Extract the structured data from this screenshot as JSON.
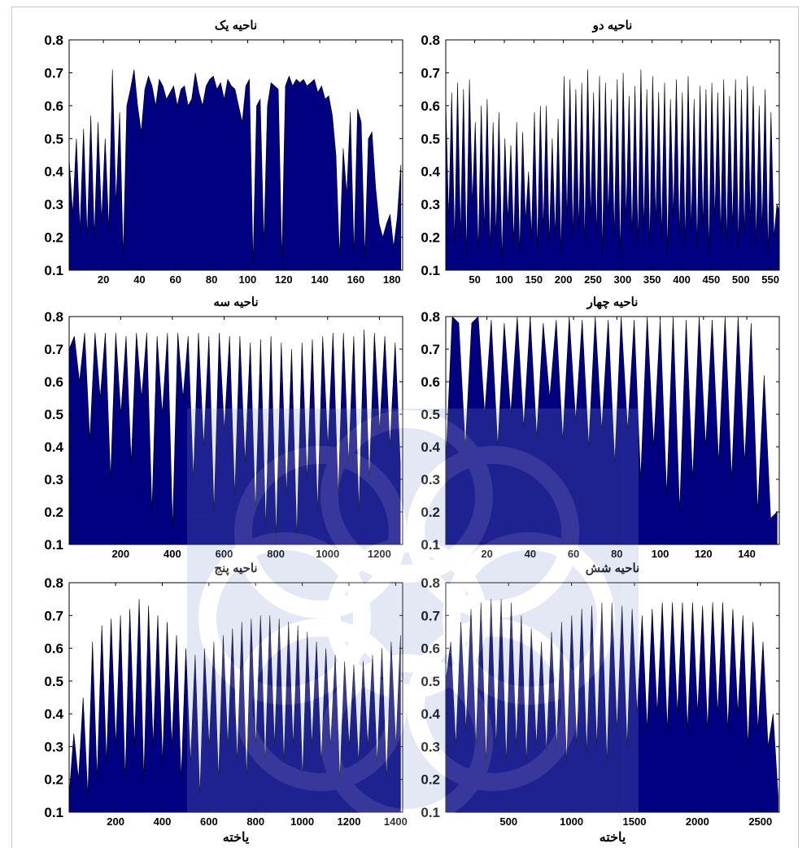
{
  "figure": {
    "fill_color": "#000080",
    "line_color": "#000000",
    "background": "#ffffff",
    "watermark": "logo overlay (pale blue)"
  },
  "chart_data": [
    {
      "type": "area",
      "title": "ناحیه یک",
      "xlabel": "",
      "ylabel": "",
      "xlim": [
        1,
        186
      ],
      "ylim": [
        0.1,
        0.8
      ],
      "xticks": [
        20,
        40,
        60,
        80,
        100,
        120,
        140,
        160,
        180
      ],
      "yticks": [
        0.1,
        0.2,
        0.3,
        0.4,
        0.5,
        0.6,
        0.7,
        0.8
      ],
      "x": [
        1,
        3,
        5,
        7,
        9,
        11,
        13,
        15,
        17,
        19,
        21,
        23,
        25,
        27,
        29,
        31,
        33,
        35,
        37,
        39,
        41,
        43,
        45,
        47,
        49,
        51,
        53,
        55,
        57,
        59,
        61,
        63,
        65,
        67,
        69,
        71,
        73,
        75,
        77,
        79,
        81,
        83,
        85,
        87,
        89,
        91,
        93,
        95,
        97,
        99,
        101,
        103,
        105,
        107,
        109,
        111,
        113,
        115,
        117,
        119,
        121,
        123,
        125,
        127,
        129,
        131,
        133,
        135,
        137,
        139,
        141,
        143,
        145,
        147,
        149,
        151,
        153,
        155,
        157,
        159,
        161,
        163,
        165,
        167,
        169,
        171,
        173,
        175,
        177,
        179,
        181,
        183,
        185
      ],
      "values": [
        0.44,
        0.27,
        0.5,
        0.22,
        0.53,
        0.2,
        0.57,
        0.2,
        0.55,
        0.25,
        0.5,
        0.22,
        0.71,
        0.3,
        0.58,
        0.14,
        0.6,
        0.65,
        0.71,
        0.6,
        0.52,
        0.65,
        0.69,
        0.66,
        0.6,
        0.68,
        0.66,
        0.62,
        0.64,
        0.66,
        0.6,
        0.65,
        0.66,
        0.6,
        0.62,
        0.7,
        0.64,
        0.6,
        0.66,
        0.68,
        0.69,
        0.65,
        0.67,
        0.62,
        0.68,
        0.66,
        0.65,
        0.6,
        0.55,
        0.66,
        0.68,
        0.12,
        0.6,
        0.62,
        0.18,
        0.6,
        0.67,
        0.66,
        0.65,
        0.13,
        0.66,
        0.69,
        0.66,
        0.68,
        0.67,
        0.68,
        0.66,
        0.67,
        0.68,
        0.64,
        0.66,
        0.62,
        0.63,
        0.57,
        0.45,
        0.14,
        0.47,
        0.33,
        0.58,
        0.15,
        0.59,
        0.55,
        0.14,
        0.5,
        0.52,
        0.35,
        0.24,
        0.2,
        0.24,
        0.27,
        0.17,
        0.26,
        0.42
      ]
    },
    {
      "type": "area",
      "title": "ناحیه دو",
      "xlabel": "",
      "ylabel": "",
      "xlim": [
        1,
        565
      ],
      "ylim": [
        0.1,
        0.8
      ],
      "xticks": [
        50,
        100,
        150,
        200,
        250,
        300,
        350,
        400,
        450,
        500,
        550
      ],
      "yticks": [
        0.1,
        0.2,
        0.3,
        0.4,
        0.5,
        0.6,
        0.7,
        0.8
      ],
      "x": [
        1,
        6,
        11,
        16,
        21,
        26,
        31,
        36,
        41,
        46,
        51,
        56,
        61,
        66,
        71,
        76,
        81,
        86,
        91,
        96,
        101,
        106,
        111,
        116,
        121,
        126,
        131,
        136,
        141,
        146,
        151,
        156,
        161,
        166,
        171,
        176,
        181,
        186,
        191,
        196,
        201,
        206,
        211,
        216,
        221,
        226,
        231,
        236,
        241,
        246,
        251,
        256,
        261,
        266,
        271,
        276,
        281,
        286,
        291,
        296,
        301,
        306,
        311,
        316,
        321,
        326,
        331,
        336,
        341,
        346,
        351,
        356,
        361,
        366,
        371,
        376,
        381,
        386,
        391,
        396,
        401,
        406,
        411,
        416,
        421,
        426,
        431,
        436,
        441,
        446,
        451,
        456,
        461,
        466,
        471,
        476,
        481,
        486,
        491,
        496,
        501,
        506,
        511,
        516,
        521,
        526,
        531,
        536,
        541,
        546,
        551,
        556,
        561,
        565
      ],
      "values": [
        0.62,
        0.25,
        0.64,
        0.18,
        0.67,
        0.2,
        0.65,
        0.14,
        0.68,
        0.3,
        0.55,
        0.15,
        0.6,
        0.22,
        0.62,
        0.16,
        0.55,
        0.2,
        0.58,
        0.13,
        0.5,
        0.25,
        0.48,
        0.18,
        0.55,
        0.15,
        0.52,
        0.25,
        0.4,
        0.2,
        0.58,
        0.16,
        0.6,
        0.22,
        0.6,
        0.18,
        0.5,
        0.2,
        0.56,
        0.15,
        0.69,
        0.25,
        0.68,
        0.2,
        0.65,
        0.22,
        0.67,
        0.18,
        0.71,
        0.25,
        0.64,
        0.2,
        0.69,
        0.15,
        0.67,
        0.26,
        0.62,
        0.2,
        0.68,
        0.14,
        0.7,
        0.25,
        0.63,
        0.2,
        0.66,
        0.18,
        0.71,
        0.22,
        0.65,
        0.17,
        0.69,
        0.24,
        0.64,
        0.2,
        0.67,
        0.15,
        0.62,
        0.26,
        0.68,
        0.2,
        0.64,
        0.18,
        0.69,
        0.22,
        0.62,
        0.17,
        0.66,
        0.23,
        0.65,
        0.15,
        0.67,
        0.25,
        0.64,
        0.2,
        0.68,
        0.18,
        0.63,
        0.22,
        0.68,
        0.17,
        0.65,
        0.2,
        0.69,
        0.24,
        0.66,
        0.18,
        0.6,
        0.22,
        0.65,
        0.15,
        0.58,
        0.2,
        0.3,
        0.28
      ]
    },
    {
      "type": "area",
      "title": "ناحیه سه",
      "xlabel": "",
      "ylabel": "",
      "xlim": [
        1,
        1290
      ],
      "ylim": [
        0.1,
        0.8
      ],
      "xticks": [
        200,
        400,
        600,
        800,
        1000,
        1200
      ],
      "yticks": [
        0.1,
        0.2,
        0.3,
        0.4,
        0.5,
        0.6,
        0.7,
        0.8
      ],
      "x": [
        1,
        21,
        41,
        61,
        81,
        101,
        121,
        141,
        161,
        181,
        201,
        221,
        241,
        261,
        281,
        301,
        321,
        341,
        361,
        381,
        401,
        421,
        441,
        461,
        481,
        501,
        521,
        541,
        561,
        581,
        601,
        621,
        641,
        661,
        681,
        701,
        721,
        741,
        761,
        781,
        801,
        821,
        841,
        861,
        881,
        901,
        921,
        941,
        961,
        981,
        1001,
        1021,
        1041,
        1061,
        1081,
        1101,
        1121,
        1141,
        1161,
        1181,
        1201,
        1221,
        1241,
        1261,
        1281
      ],
      "values": [
        0.7,
        0.74,
        0.6,
        0.75,
        0.42,
        0.75,
        0.55,
        0.75,
        0.3,
        0.75,
        0.5,
        0.74,
        0.35,
        0.75,
        0.55,
        0.75,
        0.2,
        0.74,
        0.5,
        0.75,
        0.15,
        0.75,
        0.55,
        0.74,
        0.3,
        0.75,
        0.4,
        0.74,
        0.2,
        0.75,
        0.45,
        0.74,
        0.25,
        0.74,
        0.35,
        0.72,
        0.2,
        0.73,
        0.15,
        0.74,
        0.12,
        0.72,
        0.25,
        0.7,
        0.12,
        0.72,
        0.3,
        0.73,
        0.2,
        0.74,
        0.4,
        0.75,
        0.25,
        0.75,
        0.35,
        0.74,
        0.2,
        0.76,
        0.3,
        0.75,
        0.45,
        0.74,
        0.4,
        0.72,
        0.35
      ]
    },
    {
      "type": "area",
      "title": "ناحیه چهار",
      "xlabel": "",
      "ylabel": "",
      "xlim": [
        1,
        155
      ],
      "ylim": [
        0.1,
        0.8
      ],
      "xticks": [
        20,
        40,
        60,
        80,
        100,
        120,
        140
      ],
      "yticks": [
        0.1,
        0.2,
        0.3,
        0.4,
        0.5,
        0.6,
        0.7,
        0.8
      ],
      "x": [
        1,
        4,
        7,
        10,
        13,
        16,
        19,
        22,
        25,
        28,
        31,
        34,
        37,
        40,
        43,
        46,
        49,
        52,
        55,
        58,
        61,
        64,
        67,
        70,
        73,
        76,
        79,
        82,
        85,
        88,
        91,
        94,
        97,
        100,
        103,
        106,
        109,
        112,
        115,
        118,
        121,
        124,
        127,
        130,
        133,
        136,
        139,
        142,
        145,
        148,
        151,
        154
      ],
      "values": [
        0.35,
        0.8,
        0.78,
        0.4,
        0.78,
        0.8,
        0.5,
        0.79,
        0.4,
        0.78,
        0.5,
        0.8,
        0.46,
        0.8,
        0.43,
        0.78,
        0.55,
        0.79,
        0.42,
        0.8,
        0.48,
        0.79,
        0.4,
        0.8,
        0.45,
        0.79,
        0.35,
        0.8,
        0.45,
        0.79,
        0.3,
        0.8,
        0.4,
        0.79,
        0.25,
        0.8,
        0.2,
        0.79,
        0.3,
        0.8,
        0.4,
        0.79,
        0.35,
        0.8,
        0.3,
        0.8,
        0.35,
        0.78,
        0.2,
        0.62,
        0.18,
        0.2
      ]
    },
    {
      "type": "area",
      "title": "ناحیه پنج",
      "xlabel": "یاخته",
      "ylabel": "",
      "xlim": [
        1,
        1430
      ],
      "ylim": [
        0.1,
        0.8
      ],
      "xticks": [
        200,
        400,
        600,
        800,
        1000,
        1200,
        1400
      ],
      "yticks": [
        0.1,
        0.2,
        0.3,
        0.4,
        0.5,
        0.6,
        0.7,
        0.8
      ],
      "x": [
        1,
        21,
        41,
        61,
        81,
        101,
        121,
        141,
        161,
        181,
        201,
        221,
        241,
        261,
        281,
        301,
        321,
        341,
        361,
        381,
        401,
        421,
        441,
        461,
        481,
        501,
        521,
        541,
        561,
        581,
        601,
        621,
        641,
        661,
        681,
        701,
        721,
        741,
        761,
        781,
        801,
        821,
        841,
        861,
        881,
        901,
        921,
        941,
        961,
        981,
        1001,
        1021,
        1041,
        1061,
        1081,
        1101,
        1121,
        1141,
        1161,
        1181,
        1201,
        1221,
        1241,
        1261,
        1281,
        1301,
        1321,
        1341,
        1361,
        1381,
        1401,
        1421
      ],
      "values": [
        0.15,
        0.34,
        0.2,
        0.45,
        0.15,
        0.62,
        0.2,
        0.67,
        0.25,
        0.69,
        0.3,
        0.7,
        0.2,
        0.72,
        0.3,
        0.75,
        0.2,
        0.73,
        0.3,
        0.7,
        0.25,
        0.68,
        0.3,
        0.64,
        0.2,
        0.6,
        0.25,
        0.58,
        0.15,
        0.6,
        0.3,
        0.62,
        0.2,
        0.64,
        0.3,
        0.66,
        0.25,
        0.68,
        0.2,
        0.69,
        0.3,
        0.7,
        0.25,
        0.7,
        0.3,
        0.69,
        0.25,
        0.68,
        0.3,
        0.67,
        0.2,
        0.65,
        0.3,
        0.62,
        0.25,
        0.6,
        0.3,
        0.58,
        0.2,
        0.56,
        0.3,
        0.55,
        0.25,
        0.56,
        0.3,
        0.58,
        0.25,
        0.6,
        0.2,
        0.62,
        0.3,
        0.64
      ]
    },
    {
      "type": "area",
      "title": "ناحیه شش",
      "xlabel": "یاخته",
      "ylabel": "",
      "xlim": [
        1,
        2650
      ],
      "ylim": [
        0.1,
        0.8
      ],
      "xticks": [
        500,
        1000,
        1500,
        2000,
        2500
      ],
      "yticks": [
        0.1,
        0.2,
        0.3,
        0.4,
        0.5,
        0.6,
        0.7,
        0.8
      ],
      "x": [
        1,
        41,
        81,
        121,
        161,
        201,
        241,
        281,
        321,
        361,
        401,
        441,
        481,
        521,
        561,
        601,
        641,
        681,
        721,
        761,
        801,
        841,
        881,
        921,
        961,
        1001,
        1041,
        1081,
        1121,
        1161,
        1201,
        1241,
        1281,
        1321,
        1361,
        1401,
        1441,
        1481,
        1521,
        1561,
        1601,
        1641,
        1681,
        1721,
        1761,
        1801,
        1841,
        1881,
        1921,
        1961,
        2001,
        2041,
        2081,
        2121,
        2161,
        2201,
        2241,
        2281,
        2321,
        2361,
        2401,
        2441,
        2481,
        2521,
        2561,
        2601,
        2641
      ],
      "values": [
        0.5,
        0.62,
        0.3,
        0.68,
        0.35,
        0.72,
        0.3,
        0.74,
        0.25,
        0.75,
        0.3,
        0.75,
        0.25,
        0.74,
        0.3,
        0.7,
        0.25,
        0.66,
        0.3,
        0.62,
        0.28,
        0.65,
        0.3,
        0.68,
        0.25,
        0.7,
        0.3,
        0.72,
        0.28,
        0.73,
        0.3,
        0.74,
        0.25,
        0.74,
        0.35,
        0.73,
        0.3,
        0.72,
        0.4,
        0.7,
        0.35,
        0.72,
        0.4,
        0.74,
        0.35,
        0.74,
        0.4,
        0.74,
        0.35,
        0.74,
        0.4,
        0.73,
        0.35,
        0.74,
        0.4,
        0.74,
        0.35,
        0.72,
        0.4,
        0.7,
        0.3,
        0.68,
        0.35,
        0.62,
        0.3,
        0.4,
        0.15
      ]
    }
  ]
}
